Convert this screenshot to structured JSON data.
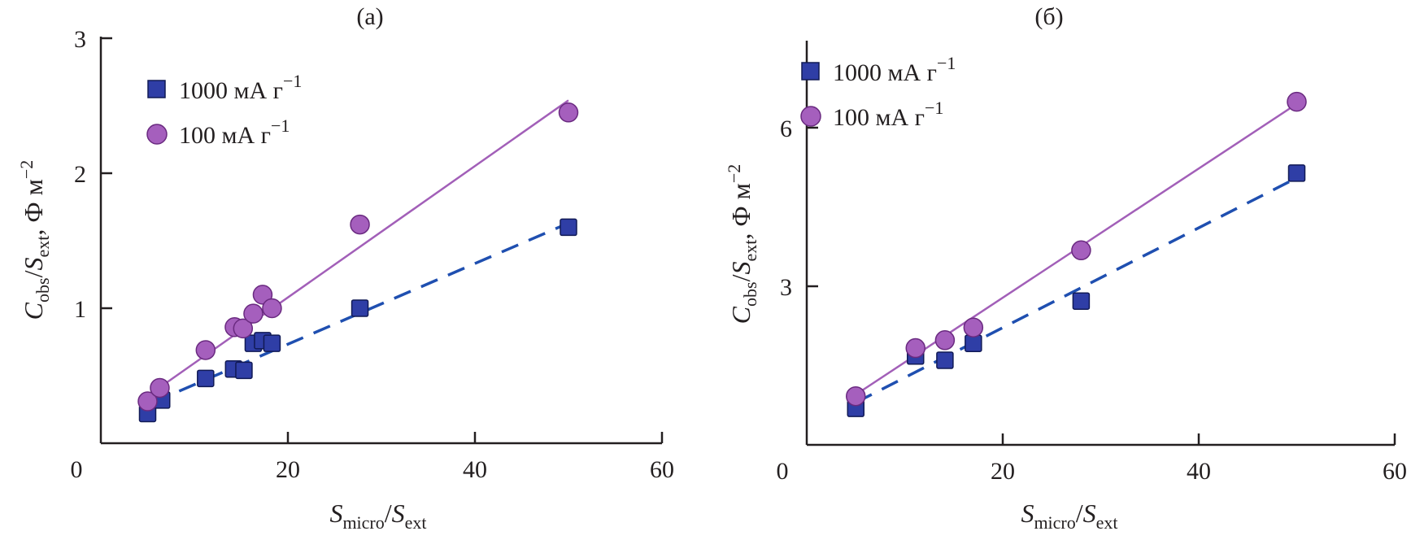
{
  "chart_data": [
    {
      "type": "scatter",
      "title": "(a)",
      "xlabel": "S_micro/S_ext",
      "ylabel": "C_obs/S_ext, Ф м^-2",
      "xlim": [
        0,
        60
      ],
      "ylim": [
        0,
        3
      ],
      "xticks": [
        0,
        20,
        40,
        60
      ],
      "yticks": [
        1,
        2,
        3
      ],
      "grid": false,
      "legend_position": "top-left",
      "series": [
        {
          "name": "1000 мА г^-1",
          "label": "1000 мА г",
          "superscript": "−1",
          "marker": "square",
          "color": "#2a3aa0",
          "line": "dashed",
          "x": [
            5,
            6.5,
            11.2,
            14.2,
            15.3,
            16.3,
            17.3,
            18.3,
            27.7,
            50
          ],
          "y": [
            0.22,
            0.32,
            0.48,
            0.55,
            0.54,
            0.74,
            0.76,
            0.74,
            1.0,
            1.6
          ],
          "fit": {
            "x": [
              5.5,
              50
            ],
            "y": [
              0.3,
              1.63
            ]
          }
        },
        {
          "name": "100 мА г^-1",
          "label": "100 мА г",
          "superscript": "−1",
          "marker": "circle",
          "color": "#a25fb8",
          "line": "solid",
          "x": [
            5,
            6.3,
            11.2,
            14.3,
            15.2,
            16.3,
            17.3,
            18.3,
            27.7,
            50
          ],
          "y": [
            0.31,
            0.41,
            0.69,
            0.86,
            0.85,
            0.96,
            1.1,
            1.0,
            1.62,
            2.45
          ],
          "fit": {
            "x": [
              5,
              50
            ],
            "y": [
              0.35,
              2.54
            ]
          }
        }
      ]
    },
    {
      "type": "scatter",
      "title": "(б)",
      "xlabel": "S_micro/S_ext",
      "ylabel": "C_obs/S_ext, Ф м^-2",
      "xlim": [
        0,
        60
      ],
      "ylim": [
        0,
        7.6
      ],
      "xticks": [
        0,
        20,
        40,
        60
      ],
      "yticks": [
        3,
        6
      ],
      "grid": false,
      "legend_position": "top-left",
      "series": [
        {
          "name": "1000 мА г^-1",
          "label": "1000 мА г",
          "superscript": "−1",
          "marker": "square",
          "color": "#2a3aa0",
          "line": "dashed",
          "x": [
            5,
            11.1,
            14.1,
            17,
            28,
            50
          ],
          "y": [
            0.69,
            1.68,
            1.6,
            1.92,
            2.72,
            5.14
          ],
          "fit": {
            "x": [
              5,
              50
            ],
            "y": [
              0.8,
              5.05
            ]
          }
        },
        {
          "name": "100 мА г^-1",
          "label": "100 мА г",
          "superscript": "−1",
          "marker": "circle",
          "color": "#a25fb8",
          "line": "solid",
          "x": [
            5,
            11.1,
            14.1,
            17,
            28,
            50
          ],
          "y": [
            0.92,
            1.83,
            1.98,
            2.22,
            3.68,
            6.49
          ],
          "fit": {
            "x": [
              5,
              50
            ],
            "y": [
              0.95,
              6.45
            ]
          }
        }
      ]
    }
  ],
  "axis_text": {
    "x_main": "S",
    "x_sub1": "micro",
    "x_slash": "/",
    "x_main2": "S",
    "x_sub2": "ext",
    "y_main": "C",
    "y_sub1": "obs",
    "y_slash": "/",
    "y_main2": "S",
    "y_sub2": "ext",
    "y_units": ", Ф м",
    "y_units_sup": "−2"
  }
}
